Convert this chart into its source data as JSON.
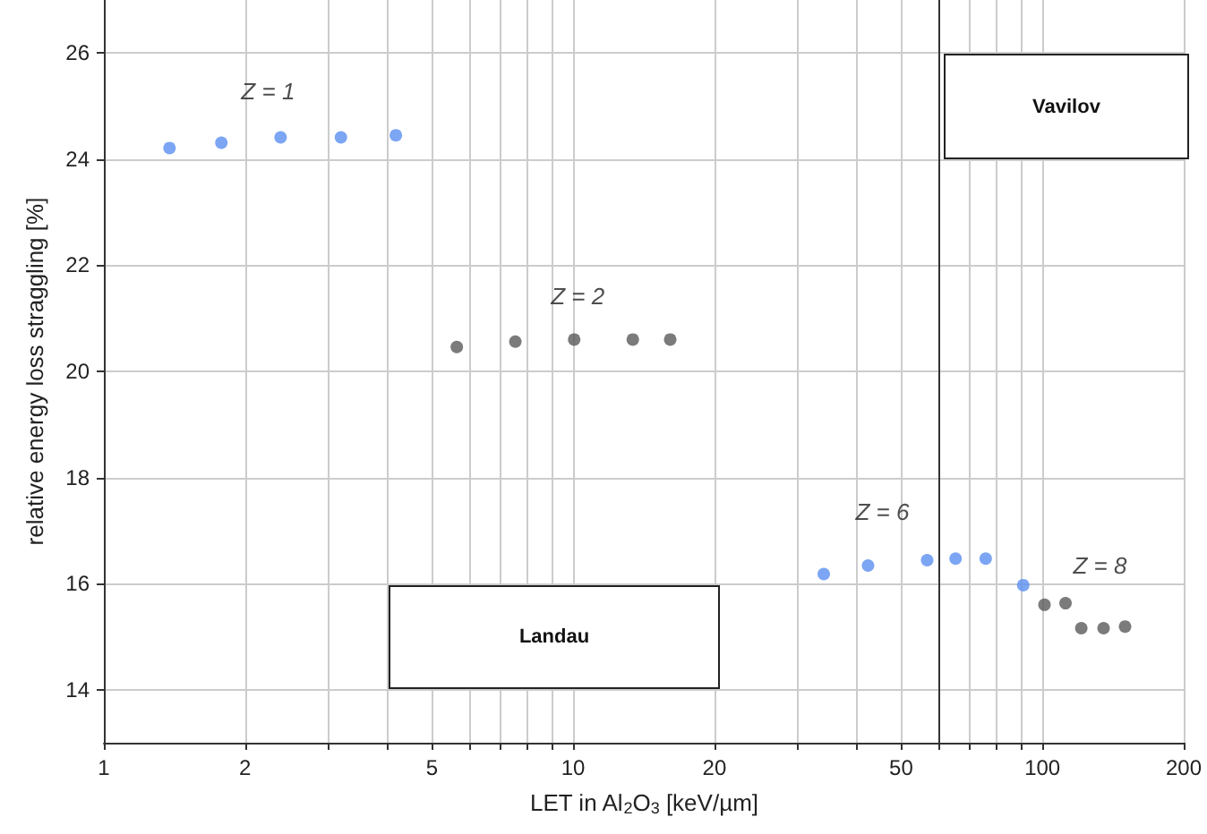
{
  "chart_data": {
    "type": "scatter",
    "xlabel": "LET in Al$_{2}$O$_{3}$ [keV/µm]",
    "ylabel": "relative energy loss straggling [%]",
    "log": "x",
    "grid": true,
    "legend": false,
    "marker": "circle",
    "xlim": [
      1,
      200
    ],
    "ylim": [
      13,
      27
    ],
    "xticks": [
      1,
      2,
      {
        "value": 3,
        "label": null
      },
      {
        "value": 4,
        "label": null
      },
      5,
      {
        "value": 6,
        "label": null
      },
      {
        "value": 7,
        "label": null
      },
      {
        "value": 8,
        "label": null
      },
      {
        "value": 9,
        "label": null
      },
      10,
      20,
      {
        "value": 30,
        "label": null
      },
      {
        "value": 40,
        "label": null
      },
      50,
      {
        "value": 60,
        "label": null
      },
      {
        "value": 70,
        "label": null
      },
      {
        "value": 80,
        "label": null
      },
      {
        "value": 90,
        "label": null
      },
      100,
      200
    ],
    "yticks": [
      14,
      16,
      18,
      20,
      22,
      24,
      26
    ],
    "series": [
      {
        "name": "Z = 1",
        "color": "#5b8ef0",
        "x": [
          1.38,
          1.78,
          2.38,
          3.2,
          4.19
        ],
        "values": [
          24.21,
          24.31,
          24.41,
          24.41,
          24.45
        ]
      },
      {
        "name": "Z = 2",
        "color": "#5a5a5a",
        "x": [
          5.65,
          7.53,
          10.05,
          13.4,
          16.1
        ],
        "values": [
          20.46,
          20.56,
          20.6,
          20.6,
          20.6
        ]
      },
      {
        "name": "Z = 6",
        "color": "#5b8ef0",
        "x": [
          34.2,
          42.5,
          56.8,
          65.3,
          75.7,
          91
        ],
        "values": [
          16.18,
          16.34,
          16.44,
          16.47,
          16.47,
          15.97
        ]
      },
      {
        "name": "Z = 8",
        "color": "#5a5a5a",
        "x": [
          101,
          112,
          121,
          135,
          150
        ],
        "values": [
          15.6,
          15.63,
          15.16,
          15.16,
          15.19
        ]
      }
    ],
    "ref_lines": [
      {
        "axis": "x",
        "value": 60,
        "color": "#333333",
        "line_style": "solid"
      }
    ],
    "annotations": [
      "Landau",
      "Vavilov"
    ]
  }
}
